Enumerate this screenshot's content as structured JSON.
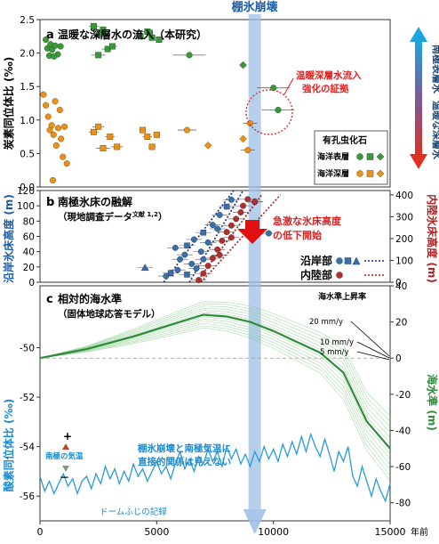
{
  "top_label": "棚氷崩壊",
  "x_axis": {
    "ticks": [
      0,
      5000,
      10000,
      15000
    ],
    "unit": "年前"
  },
  "chart_data": [
    {
      "panel": "a",
      "type": "scatter",
      "title": "温暖な深層水の流入（本研究）",
      "ylabel": "炭素同位体比 (‰)",
      "xlim": [
        0,
        15000
      ],
      "ylim": [
        0,
        2.5
      ],
      "y_ticks": [
        0,
        0.5,
        1.0,
        1.5,
        2.0,
        2.5
      ],
      "right_label_top": "南極表層水",
      "right_label_bottom": "温暖な深層水",
      "annotation": "温暖深層水流入\n強化の証拠",
      "legend": {
        "title": "有孔虫化石",
        "rows": [
          "海洋表層",
          "海洋深層"
        ],
        "placement": "bottom-right"
      },
      "series": [
        {
          "name": "海洋表層",
          "color": "#3a9a3a",
          "points": [
            {
              "x": 250,
              "y": 2.2,
              "s": "c"
            },
            {
              "x": 320,
              "y": 2.07,
              "s": "c"
            },
            {
              "x": 450,
              "y": 2.13,
              "s": "c"
            },
            {
              "x": 520,
              "y": 2.05,
              "s": "c"
            },
            {
              "x": 650,
              "y": 2.11,
              "s": "c"
            },
            {
              "x": 760,
              "y": 1.98,
              "s": "c"
            },
            {
              "x": 400,
              "y": 1.96,
              "s": "c"
            },
            {
              "x": 880,
              "y": 2.1,
              "s": "c"
            },
            {
              "x": 600,
              "y": 1.95,
              "s": "c"
            },
            {
              "x": 2300,
              "y": 2.4,
              "s": "s",
              "err": 200
            },
            {
              "x": 2550,
              "y": 2.28,
              "s": "s",
              "err": 200
            },
            {
              "x": 2700,
              "y": 2.35,
              "s": "s",
              "err": 150
            },
            {
              "x": 2900,
              "y": 2.06,
              "s": "s",
              "err": 250
            },
            {
              "x": 3100,
              "y": 2.1,
              "s": "s",
              "err": 200
            },
            {
              "x": 2500,
              "y": 1.97,
              "s": "s",
              "err": 300
            },
            {
              "x": 4300,
              "y": 2.25,
              "s": "s",
              "err": 150
            },
            {
              "x": 4600,
              "y": 2.32,
              "s": "s",
              "err": 200
            },
            {
              "x": 4800,
              "y": 2.23,
              "s": "s",
              "err": 150
            },
            {
              "x": 5100,
              "y": 2.2,
              "s": "s",
              "err": 200
            },
            {
              "x": 4700,
              "y": 2.3,
              "s": "s",
              "err": 150
            },
            {
              "x": 6400,
              "y": 1.97,
              "s": "c",
              "err": 700
            },
            {
              "x": 8700,
              "y": 1.82,
              "s": "d"
            },
            {
              "x": 10000,
              "y": 1.48,
              "s": "c",
              "err": 700
            },
            {
              "x": 10200,
              "y": 1.15,
              "s": "c",
              "err": 700
            }
          ]
        },
        {
          "name": "海洋深層",
          "color": "#e8921a",
          "points": [
            {
              "x": 150,
              "y": 1.38,
              "s": "c"
            },
            {
              "x": 250,
              "y": 1.22,
              "s": "c"
            },
            {
              "x": 350,
              "y": 1.05,
              "s": "c"
            },
            {
              "x": 420,
              "y": 0.85,
              "s": "c"
            },
            {
              "x": 500,
              "y": 0.92,
              "s": "c"
            },
            {
              "x": 580,
              "y": 0.78,
              "s": "c"
            },
            {
              "x": 650,
              "y": 1.28,
              "s": "c"
            },
            {
              "x": 700,
              "y": 0.62,
              "s": "c"
            },
            {
              "x": 780,
              "y": 0.88,
              "s": "c"
            },
            {
              "x": 850,
              "y": 1.15,
              "s": "c"
            },
            {
              "x": 900,
              "y": 0.72,
              "s": "c"
            },
            {
              "x": 980,
              "y": 0.45,
              "s": "c"
            },
            {
              "x": 1050,
              "y": 0.9,
              "s": "c"
            },
            {
              "x": 1150,
              "y": 0.35,
              "s": "c"
            },
            {
              "x": 550,
              "y": 0.1,
              "s": "c"
            },
            {
              "x": 2300,
              "y": 0.82,
              "s": "s",
              "err": 200
            },
            {
              "x": 2500,
              "y": 0.9,
              "s": "s",
              "err": 250
            },
            {
              "x": 2700,
              "y": 0.58,
              "s": "s",
              "err": 300
            },
            {
              "x": 3000,
              "y": 0.75,
              "s": "s",
              "err": 200
            },
            {
              "x": 3300,
              "y": 0.6,
              "s": "s",
              "err": 250
            },
            {
              "x": 4400,
              "y": 0.85,
              "s": "s",
              "err": 150
            },
            {
              "x": 4600,
              "y": 0.75,
              "s": "s",
              "err": 200
            },
            {
              "x": 4800,
              "y": 0.6,
              "s": "s",
              "err": 150
            },
            {
              "x": 5000,
              "y": 0.78,
              "s": "s",
              "err": 150
            },
            {
              "x": 6300,
              "y": 0.85,
              "s": "c",
              "err": 400
            },
            {
              "x": 7200,
              "y": 0.62,
              "s": "d"
            },
            {
              "x": 8700,
              "y": 0.72,
              "s": "d"
            },
            {
              "x": 9000,
              "y": 0.95,
              "s": "c",
              "err": 300
            },
            {
              "x": 8900,
              "y": 0.55,
              "s": "c",
              "err": 300
            }
          ]
        }
      ]
    },
    {
      "panel": "b",
      "type": "scatter",
      "title": "南極氷床の融解",
      "subtitle": "（現地調査データ",
      "subtitle_ref": "文献 1,2",
      "subtitle_close": "）",
      "ylabel_left": "沿岸氷床高度 (m)",
      "ylabel_right": "内陸氷床高度 (m)",
      "xlim": [
        0,
        15000
      ],
      "ylim_left": [
        0,
        120
      ],
      "ylim_right": [
        0,
        420
      ],
      "y_ticks_left": [
        0,
        20,
        40,
        60,
        80,
        100,
        120
      ],
      "y_ticks_right": [
        0,
        100,
        200,
        300,
        400
      ],
      "annotation": "急激な氷床高度\nの低下開始",
      "legend": {
        "rows": [
          "沿岸部",
          "内陸部"
        ],
        "placement": "bottom-right"
      },
      "series": [
        {
          "name": "沿岸部",
          "axis": "left",
          "color": "#3a6fa8",
          "points": [
            {
              "x": 4500,
              "y": 19
            },
            {
              "x": 5400,
              "y": 8
            },
            {
              "x": 5600,
              "y": 12
            },
            {
              "x": 5900,
              "y": 16
            },
            {
              "x": 6000,
              "y": 30
            },
            {
              "x": 6200,
              "y": 36
            },
            {
              "x": 5800,
              "y": 45
            },
            {
              "x": 6300,
              "y": 48
            },
            {
              "x": 6500,
              "y": 24
            },
            {
              "x": 6700,
              "y": 18
            },
            {
              "x": 6600,
              "y": 56
            },
            {
              "x": 6900,
              "y": 40
            },
            {
              "x": 7000,
              "y": 65
            },
            {
              "x": 7200,
              "y": 52
            },
            {
              "x": 7400,
              "y": 75
            },
            {
              "x": 7600,
              "y": 70
            },
            {
              "x": 7700,
              "y": 88
            },
            {
              "x": 8000,
              "y": 99
            },
            {
              "x": 8200,
              "y": 108
            },
            {
              "x": 9200,
              "y": 105
            },
            {
              "x": 9800,
              "y": 64
            },
            {
              "x": 7000,
              "y": 30
            },
            {
              "x": 6300,
              "y": 10
            }
          ]
        },
        {
          "name": "内陸部",
          "axis": "right",
          "color": "#b03030",
          "points": [
            {
              "x": 6800,
              "y": 10
            },
            {
              "x": 7000,
              "y": 40
            },
            {
              "x": 7200,
              "y": 75
            },
            {
              "x": 7400,
              "y": 110
            },
            {
              "x": 7600,
              "y": 150
            },
            {
              "x": 7800,
              "y": 190
            },
            {
              "x": 8000,
              "y": 230
            },
            {
              "x": 8200,
              "y": 260
            },
            {
              "x": 8400,
              "y": 290
            },
            {
              "x": 8600,
              "y": 320
            },
            {
              "x": 8700,
              "y": 350
            },
            {
              "x": 8900,
              "y": 380
            },
            {
              "x": 9200,
              "y": 370
            },
            {
              "x": 8200,
              "y": 205
            },
            {
              "x": 7700,
              "y": 125
            }
          ]
        }
      ],
      "trendlines": [
        {
          "name": "沿岸部",
          "color": "#1a2a8a",
          "x": [
            5300,
            8300
          ],
          "y": [
            0,
            120
          ]
        },
        {
          "name": "沿岸部",
          "color": "#1a2a8a",
          "x": [
            6400,
            8700
          ],
          "y": [
            0,
            120
          ]
        },
        {
          "name": "内陸部",
          "color": "#b01818",
          "x": [
            6700,
            9500
          ],
          "y": [
            0,
            400
          ]
        },
        {
          "name": "内陸部",
          "color": "#b01818",
          "x": [
            6900,
            10300
          ],
          "y": [
            0,
            400
          ]
        }
      ]
    },
    {
      "panel": "c",
      "type": "line",
      "title": "相対的海水準",
      "subtitle": "（固体地球応答モデル）",
      "ylabel_left": "酸素同位体比 (‰)",
      "ylabel_right": "海水準 (m)",
      "xlim": [
        0,
        15000
      ],
      "ylim_left": [
        -57,
        -47.5
      ],
      "ylim_right": [
        -90,
        40
      ],
      "y_ticks_left": [
        -56,
        -54,
        -52,
        -50
      ],
      "y_ticks_right": [
        -80,
        -60,
        -40,
        -20,
        0,
        20,
        40
      ],
      "rate_title": "海水準上昇率",
      "rate_labels": [
        "20 mm/y",
        "10 mm/y",
        "5 mm/y"
      ],
      "plus_sign": "+",
      "minus_sign": "－",
      "temp_label": "南極の気温",
      "annotation": "棚氷崩壊と南極気温に\n直接的関係は見えない",
      "record_label": "ドームふじの記録",
      "sea_level": {
        "name": "海水準",
        "color": "#2e8b3a",
        "x": [
          0,
          2000,
          4000,
          6000,
          7000,
          8000,
          9000,
          10000,
          11000,
          12000,
          13000,
          14000,
          15000
        ],
        "y": [
          0,
          5,
          12,
          20,
          24,
          23,
          20,
          15,
          9,
          3,
          -8,
          -35,
          -50
        ],
        "spread": [
          0,
          2,
          5,
          8,
          9,
          10,
          11,
          12,
          13,
          14,
          15,
          16,
          18
        ]
      },
      "oxygen_isotope": {
        "name": "ドームふじの記録",
        "color": "#2a9ad8",
        "x": [
          0,
          200,
          400,
          600,
          800,
          1000,
          1200,
          1400,
          1600,
          1800,
          2000,
          2200,
          2400,
          2600,
          2800,
          3000,
          3200,
          3400,
          3600,
          3800,
          4000,
          4200,
          4400,
          4600,
          4800,
          5000,
          5200,
          5400,
          5600,
          5800,
          6000,
          6200,
          6400,
          6600,
          6800,
          7000,
          7200,
          7400,
          7600,
          7800,
          8000,
          8200,
          8400,
          8600,
          8800,
          9000,
          9200,
          9400,
          9600,
          9800,
          10000,
          10200,
          10400,
          10600,
          10800,
          11000,
          11200,
          11400,
          11600,
          11800,
          12000,
          12200,
          12400,
          12600,
          12800,
          13000,
          13200,
          13400,
          13600,
          13800,
          14000,
          14200,
          14400,
          14600,
          14800,
          15000
        ],
        "y": [
          -55.2,
          -55.8,
          -55.4,
          -55.9,
          -55.5,
          -55.1,
          -55.6,
          -55.3,
          -55.9,
          -55.4,
          -55.2,
          -55.7,
          -55.1,
          -55.5,
          -54.8,
          -55.3,
          -54.9,
          -55.5,
          -55.0,
          -55.4,
          -54.7,
          -55.2,
          -54.9,
          -55.4,
          -55.0,
          -54.6,
          -55.1,
          -54.8,
          -55.3,
          -54.7,
          -54.2,
          -54.9,
          -54.5,
          -55.0,
          -54.4,
          -54.7,
          -54.1,
          -54.6,
          -54.2,
          -54.8,
          -54.0,
          -54.5,
          -54.1,
          -54.7,
          -54.3,
          -54.8,
          -54.2,
          -54.6,
          -54.0,
          -54.5,
          -54.1,
          -54.6,
          -53.9,
          -54.4,
          -53.8,
          -54.3,
          -53.6,
          -54.2,
          -53.5,
          -54.0,
          -54.4,
          -53.7,
          -54.3,
          -55.0,
          -54.2,
          -54.6,
          -54.0,
          -55.2,
          -55.6,
          -54.8,
          -55.4,
          -56.0,
          -55.3,
          -55.8,
          -56.2,
          -55.5
        ]
      },
      "reference_line": {
        "y_right": 0,
        "style": "dashed"
      }
    }
  ],
  "collapse_marker": {
    "x": 9200,
    "color": "#9ec0e6"
  }
}
